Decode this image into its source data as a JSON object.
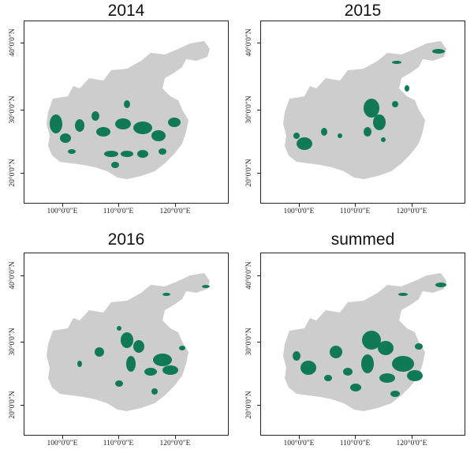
{
  "panels": [
    {
      "title": "2014"
    },
    {
      "title": "2015"
    },
    {
      "title": "2016"
    },
    {
      "title": "summed"
    }
  ],
  "axes": {
    "x_ticks": [
      "100°0'0\"E",
      "110°0'0\"E",
      "120°0'0\"E"
    ],
    "y_ticks": [
      "20°0'0\"N",
      "30°0'0\"N",
      "40°0'0\"N"
    ]
  },
  "colors": {
    "land": "#cdcdcd",
    "highlight": "#0f7a55"
  }
}
